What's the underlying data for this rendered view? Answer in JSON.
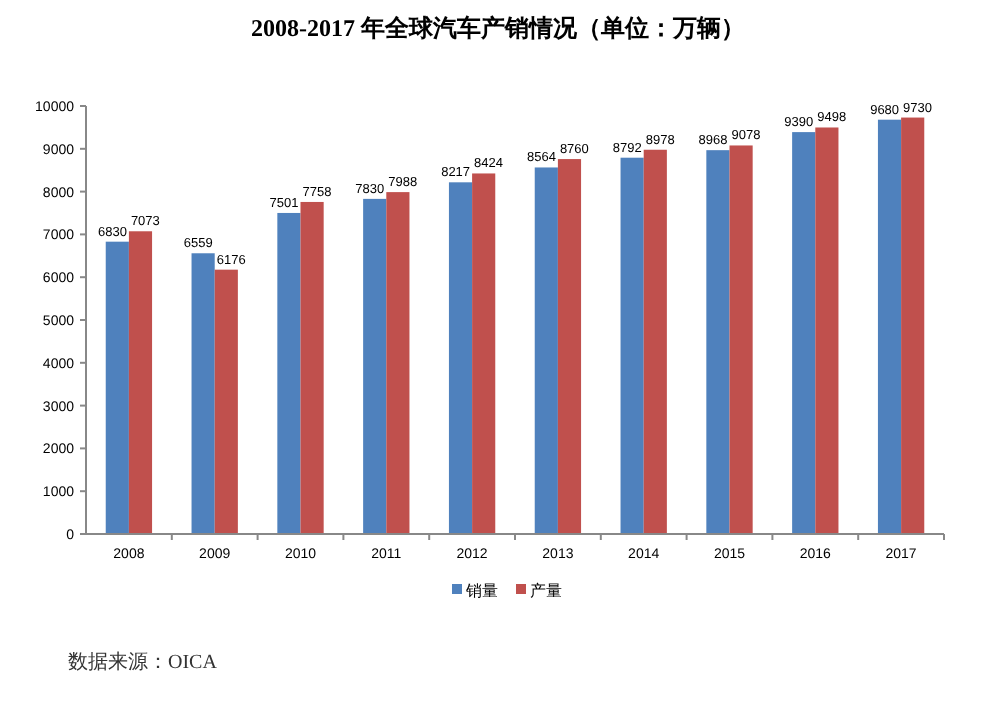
{
  "chart_data": {
    "type": "bar",
    "title": "2008-2017 年全球汽车产销情况（单位：万辆）",
    "categories": [
      "2008",
      "2009",
      "2010",
      "2011",
      "2012",
      "2013",
      "2014",
      "2015",
      "2016",
      "2017"
    ],
    "series": [
      {
        "name": "销量",
        "color": "#4f81bd",
        "values": [
          6830,
          6559,
          7501,
          7830,
          8217,
          8564,
          8792,
          8968,
          9390,
          9680
        ]
      },
      {
        "name": "产量",
        "color": "#c0504d",
        "values": [
          7073,
          6176,
          7758,
          7988,
          8424,
          8760,
          8978,
          9078,
          9498,
          9730
        ]
      }
    ],
    "ylim": [
      0,
      10000
    ],
    "yticks": [
      0,
      1000,
      2000,
      3000,
      4000,
      5000,
      6000,
      7000,
      8000,
      9000,
      10000
    ],
    "grid": false,
    "legend": "bottom",
    "data_labels": true,
    "annotations": [
      "数据来源：OICA"
    ]
  }
}
